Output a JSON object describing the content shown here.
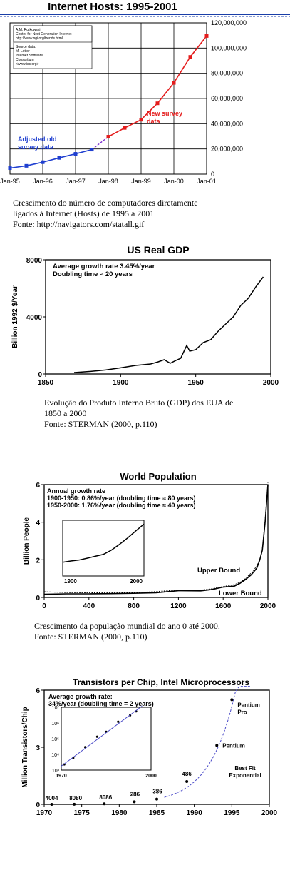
{
  "charts": [
    {
      "type": "line",
      "title": "Internet Hosts: 1995-2001",
      "x_ticks": [
        "Jan-95",
        "Jan-96",
        "Jan-97",
        "Jan-98",
        "Jan-99",
        "Jan-00",
        "Jan-01"
      ],
      "y_ticks": [
        "0",
        "20,000,000",
        "40,000,000",
        "60,000,000",
        "80,000,000",
        "100,000,000",
        "120,000,000"
      ],
      "ylim": [
        0,
        120000000
      ],
      "grid": true,
      "source_box": [
        "A.M. Rutkowski",
        "Center for Next Generation Internet",
        "http://www.ngi.org/trends.html",
        "",
        "Source data:",
        "M. Lottor",
        "Internet Software",
        "Consortium",
        "<www.isc.org>"
      ],
      "annotations": {
        "old": [
          "Adjusted old",
          "survey data"
        ],
        "new": [
          "New survey",
          "data"
        ]
      },
      "colors": {
        "old": "#1f3fd0",
        "new": "#e41c1c",
        "grid": "#000000"
      },
      "series": [
        {
          "label": "old",
          "x": [
            0,
            0.5,
            1,
            1.5,
            2,
            2.5
          ],
          "values": [
            4800000,
            6600000,
            9500000,
            12900000,
            16100000,
            19500000
          ]
        },
        {
          "label": "new",
          "x": [
            3,
            3.5,
            4,
            4.5,
            5,
            5.5,
            6
          ],
          "values": [
            29700000,
            36700000,
            43200000,
            56200000,
            72400000,
            93000000,
            109600000
          ]
        }
      ],
      "bridge": {
        "x": [
          2.5,
          3
        ],
        "values": [
          19500000,
          29700000
        ]
      }
    },
    {
      "type": "line",
      "title": "US Real GDP",
      "ylabel": "Billion 1992 $/Year",
      "x_ticks": [
        "1850",
        "1900",
        "1950",
        "2000"
      ],
      "y_ticks": [
        "0",
        "4000",
        "8000"
      ],
      "xlim": [
        1850,
        2000
      ],
      "ylim": [
        0,
        8000
      ],
      "annotation": [
        "Average growth rate 3.45%/year",
        "Doubling time ≈ 20 years"
      ],
      "x": [
        1869,
        1880,
        1890,
        1900,
        1910,
        1915,
        1920,
        1925,
        1929,
        1933,
        1937,
        1940,
        1944,
        1946,
        1950,
        1955,
        1960,
        1965,
        1970,
        1975,
        1980,
        1985,
        1990,
        1995
      ],
      "values": [
        100,
        180,
        280,
        430,
        600,
        650,
        700,
        850,
        1000,
        750,
        960,
        1100,
        2000,
        1600,
        1700,
        2200,
        2400,
        3000,
        3500,
        4000,
        4800,
        5300,
        6100,
        6800
      ]
    },
    {
      "type": "line",
      "title": "World Population",
      "ylabel": "Billion People",
      "x_ticks": [
        "0",
        "400",
        "800",
        "1200",
        "1600",
        "2000"
      ],
      "y_ticks": [
        "0",
        "2",
        "4",
        "6"
      ],
      "xlim": [
        0,
        2000
      ],
      "ylim": [
        0,
        6
      ],
      "annotation": [
        "Annual growth rate",
        "1900-1950: 0.86%/year (doubling time ≈ 80 years)",
        "1950-2000: 1.76%/year (doubling time ≈ 40 years)"
      ],
      "series": [
        {
          "name": "Upper Bound",
          "x": [
            0,
            200,
            400,
            600,
            800,
            1000,
            1200,
            1400,
            1500,
            1600,
            1700,
            1750,
            1800,
            1850,
            1900,
            1925,
            1950,
            1975,
            2000
          ],
          "values": [
            0.3,
            0.26,
            0.25,
            0.24,
            0.25,
            0.31,
            0.4,
            0.39,
            0.46,
            0.58,
            0.68,
            0.8,
            1.0,
            1.3,
            1.65,
            2.0,
            2.55,
            4.1,
            6.1
          ]
        },
        {
          "name": "Lower Bound",
          "x": [
            0,
            200,
            400,
            600,
            800,
            1000,
            1200,
            1400,
            1500,
            1600,
            1700,
            1750,
            1800,
            1850,
            1900,
            1925,
            1950,
            1975,
            2000
          ],
          "values": [
            0.17,
            0.19,
            0.19,
            0.2,
            0.22,
            0.25,
            0.36,
            0.35,
            0.42,
            0.55,
            0.6,
            0.75,
            0.95,
            1.2,
            1.55,
            1.95,
            2.5,
            4.0,
            6.0
          ]
        }
      ],
      "inset": {
        "x_ticks": [
          "1900",
          "2000"
        ],
        "xlim": [
          1900,
          2000
        ],
        "x": [
          1900,
          1910,
          1920,
          1930,
          1940,
          1950,
          1960,
          1970,
          1980,
          1990,
          2000
        ],
        "values": [
          1.6,
          1.75,
          1.86,
          2.07,
          2.3,
          2.52,
          3.02,
          3.7,
          4.44,
          5.27,
          6.06
        ]
      }
    },
    {
      "type": "scatter",
      "title": "Transistors per Chip, Intel Microprocessors",
      "ylabel": "Million Transistors/Chip",
      "x_ticks": [
        "1970",
        "1975",
        "1980",
        "1985",
        "1990",
        "1995",
        "2000"
      ],
      "y_ticks": [
        "0",
        "3",
        "6"
      ],
      "xlim": [
        1970,
        2000
      ],
      "ylim": [
        0,
        6
      ],
      "annotation": [
        "Average growth rate:",
        "34%/year (doubling time = 2 years)"
      ],
      "points": [
        {
          "x": 1971,
          "value": 0.0023,
          "label": "4004"
        },
        {
          "x": 1974,
          "value": 0.006,
          "label": "8080"
        },
        {
          "x": 1978,
          "value": 0.029,
          "label": "8086"
        },
        {
          "x": 1982,
          "value": 0.134,
          "label": "286"
        },
        {
          "x": 1985,
          "value": 0.275,
          "label": "386"
        },
        {
          "x": 1989,
          "value": 1.2,
          "label": "486"
        },
        {
          "x": 1993,
          "value": 3.1,
          "label": "Pentium"
        },
        {
          "x": 1995,
          "value": 5.5,
          "label": "Pentium Pro"
        }
      ],
      "fit_label": [
        "Best Fit",
        "Exponential"
      ],
      "inset": {
        "x_ticks": [
          "1970",
          "2000"
        ],
        "y_ticks": [
          "10³",
          "10⁴",
          "10⁵",
          "10⁶",
          "10⁷"
        ]
      }
    }
  ],
  "captions": [
    [
      "Crescimento do número de computadores diretamente",
      "ligados à Internet (Hosts) de 1995 a 2001",
      "Fonte: http://navigators.com/statall.gif"
    ],
    [
      "Evolução do Produto Interno Bruto (GDP) dos EUA de",
      "1850 a 2000",
      "Fonte: STERMAN (2000,  p.110)"
    ],
    [
      "Crescimento da população mundial do ano 0 até 2000.",
      "Fonte: STERMAN  (2000, p.110)"
    ]
  ]
}
